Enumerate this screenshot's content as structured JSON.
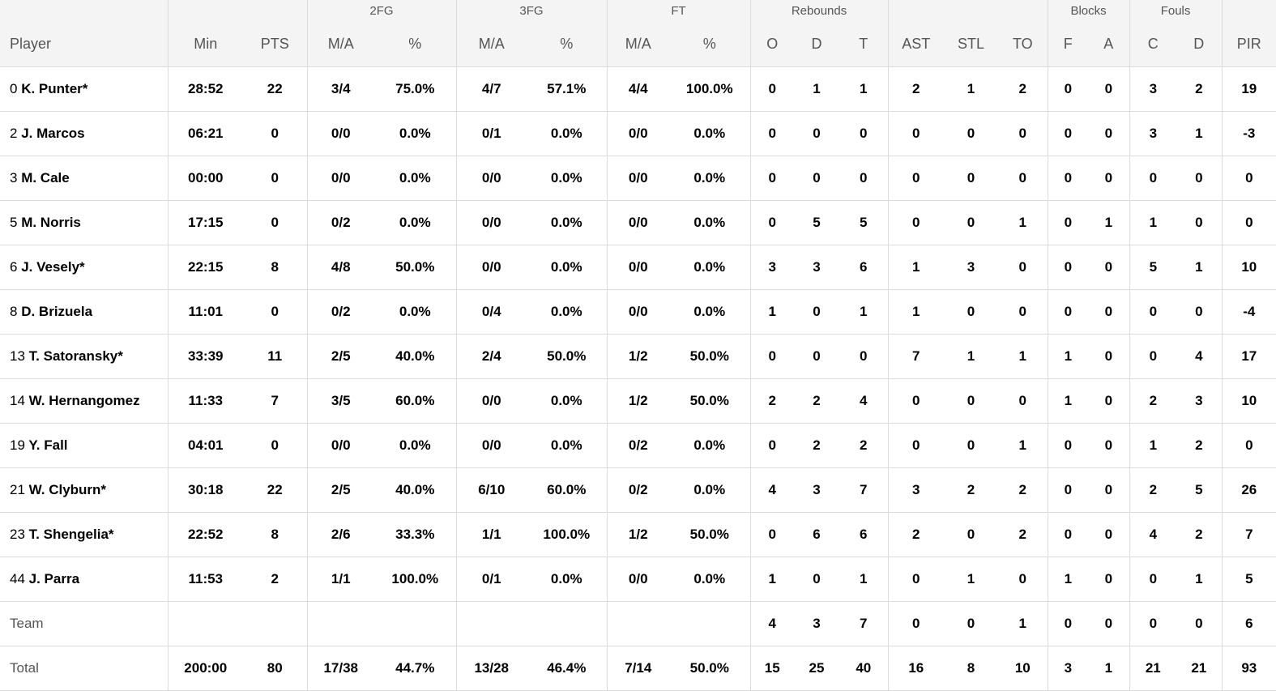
{
  "groups": {
    "fg2": "2FG",
    "fg3": "3FG",
    "ft": "FT",
    "reb": "Rebounds",
    "blk": "Blocks",
    "fouls": "Fouls"
  },
  "columns": [
    "Player",
    "Min",
    "PTS",
    "M/A",
    "%",
    "M/A",
    "%",
    "M/A",
    "%",
    "O",
    "D",
    "T",
    "AST",
    "STL",
    "TO",
    "F",
    "A",
    "C",
    "D",
    "PIR"
  ],
  "rows": [
    {
      "num": "0",
      "name": "K. Punter*",
      "stats": [
        "28:52",
        "22",
        "3/4",
        "75.0%",
        "4/7",
        "57.1%",
        "4/4",
        "100.0%",
        "0",
        "1",
        "1",
        "2",
        "1",
        "2",
        "0",
        "0",
        "3",
        "2",
        "19"
      ]
    },
    {
      "num": "2",
      "name": "J. Marcos",
      "stats": [
        "06:21",
        "0",
        "0/0",
        "0.0%",
        "0/1",
        "0.0%",
        "0/0",
        "0.0%",
        "0",
        "0",
        "0",
        "0",
        "0",
        "0",
        "0",
        "0",
        "3",
        "1",
        "-3"
      ]
    },
    {
      "num": "3",
      "name": "M. Cale",
      "stats": [
        "00:00",
        "0",
        "0/0",
        "0.0%",
        "0/0",
        "0.0%",
        "0/0",
        "0.0%",
        "0",
        "0",
        "0",
        "0",
        "0",
        "0",
        "0",
        "0",
        "0",
        "0",
        "0"
      ]
    },
    {
      "num": "5",
      "name": "M. Norris",
      "stats": [
        "17:15",
        "0",
        "0/2",
        "0.0%",
        "0/0",
        "0.0%",
        "0/0",
        "0.0%",
        "0",
        "5",
        "5",
        "0",
        "0",
        "1",
        "0",
        "1",
        "1",
        "0",
        "0"
      ]
    },
    {
      "num": "6",
      "name": "J. Vesely*",
      "stats": [
        "22:15",
        "8",
        "4/8",
        "50.0%",
        "0/0",
        "0.0%",
        "0/0",
        "0.0%",
        "3",
        "3",
        "6",
        "1",
        "3",
        "0",
        "0",
        "0",
        "5",
        "1",
        "10"
      ]
    },
    {
      "num": "8",
      "name": "D. Brizuela",
      "stats": [
        "11:01",
        "0",
        "0/2",
        "0.0%",
        "0/4",
        "0.0%",
        "0/0",
        "0.0%",
        "1",
        "0",
        "1",
        "1",
        "0",
        "0",
        "0",
        "0",
        "0",
        "0",
        "-4"
      ]
    },
    {
      "num": "13",
      "name": "T. Satoransky*",
      "stats": [
        "33:39",
        "11",
        "2/5",
        "40.0%",
        "2/4",
        "50.0%",
        "1/2",
        "50.0%",
        "0",
        "0",
        "0",
        "7",
        "1",
        "1",
        "1",
        "0",
        "0",
        "4",
        "17"
      ]
    },
    {
      "num": "14",
      "name": "W. Hernangomez",
      "stats": [
        "11:33",
        "7",
        "3/5",
        "60.0%",
        "0/0",
        "0.0%",
        "1/2",
        "50.0%",
        "2",
        "2",
        "4",
        "0",
        "0",
        "0",
        "1",
        "0",
        "2",
        "3",
        "10"
      ]
    },
    {
      "num": "19",
      "name": "Y. Fall",
      "stats": [
        "04:01",
        "0",
        "0/0",
        "0.0%",
        "0/0",
        "0.0%",
        "0/2",
        "0.0%",
        "0",
        "2",
        "2",
        "0",
        "0",
        "1",
        "0",
        "0",
        "1",
        "2",
        "0"
      ]
    },
    {
      "num": "21",
      "name": "W. Clyburn*",
      "stats": [
        "30:18",
        "22",
        "2/5",
        "40.0%",
        "6/10",
        "60.0%",
        "0/2",
        "0.0%",
        "4",
        "3",
        "7",
        "3",
        "2",
        "2",
        "0",
        "0",
        "2",
        "5",
        "26"
      ]
    },
    {
      "num": "23",
      "name": "T. Shengelia*",
      "stats": [
        "22:52",
        "8",
        "2/6",
        "33.3%",
        "1/1",
        "100.0%",
        "1/2",
        "50.0%",
        "0",
        "6",
        "6",
        "2",
        "0",
        "2",
        "0",
        "0",
        "4",
        "2",
        "7"
      ]
    },
    {
      "num": "44",
      "name": "J. Parra",
      "stats": [
        "11:53",
        "2",
        "1/1",
        "100.0%",
        "0/1",
        "0.0%",
        "0/0",
        "0.0%",
        "1",
        "0",
        "1",
        "0",
        "1",
        "0",
        "1",
        "0",
        "0",
        "1",
        "5"
      ]
    }
  ],
  "team": {
    "label": "Team",
    "stats": [
      "",
      "",
      "",
      "",
      "",
      "",
      "",
      "",
      "4",
      "3",
      "7",
      "0",
      "0",
      "1",
      "0",
      "0",
      "0",
      "0",
      "6"
    ]
  },
  "total": {
    "label": "Total",
    "stats": [
      "200:00",
      "80",
      "17/38",
      "44.7%",
      "13/28",
      "46.4%",
      "7/14",
      "50.0%",
      "15",
      "25",
      "40",
      "16",
      "8",
      "10",
      "3",
      "1",
      "21",
      "21",
      "93"
    ]
  }
}
